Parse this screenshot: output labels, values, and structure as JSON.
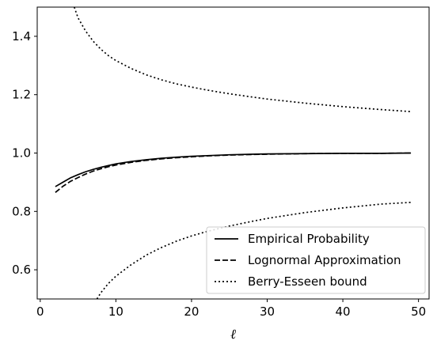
{
  "chart_data": {
    "type": "line",
    "title": "",
    "xlabel": "ℓ",
    "ylabel": "",
    "xlim": [
      -0.4,
      51.4
    ],
    "ylim": [
      0.5,
      1.5
    ],
    "xticks": [
      0,
      10,
      20,
      30,
      40,
      50
    ],
    "yticks": [
      0.6,
      0.8,
      1.0,
      1.2,
      1.4
    ],
    "xtick_labels": [
      "0",
      "10",
      "20",
      "30",
      "40",
      "50"
    ],
    "ytick_labels": [
      "0.6",
      "0.8",
      "1.0",
      "1.2",
      "1.4"
    ],
    "grid": false,
    "legend_position": "lower-right",
    "series": [
      {
        "name": "Empirical Probability",
        "style": "solid",
        "color": "#000000",
        "x": [
          2,
          3,
          4,
          5,
          6,
          7,
          8,
          9,
          10,
          12,
          14,
          16,
          18,
          20,
          22,
          25,
          28,
          30,
          35,
          40,
          45,
          49
        ],
        "y": [
          0.885,
          0.9,
          0.915,
          0.926,
          0.936,
          0.944,
          0.951,
          0.957,
          0.963,
          0.971,
          0.977,
          0.982,
          0.986,
          0.989,
          0.991,
          0.994,
          0.996,
          0.997,
          0.998,
          0.999,
          0.999,
          1.0
        ]
      },
      {
        "name": "Lognormal Approximation",
        "style": "dashed",
        "color": "#000000",
        "x": [
          2,
          3,
          4,
          5,
          6,
          7,
          8,
          9,
          10,
          12,
          14,
          16,
          18,
          20,
          22,
          25,
          28,
          30,
          35,
          40,
          45,
          49
        ],
        "y": [
          0.865,
          0.886,
          0.903,
          0.916,
          0.928,
          0.938,
          0.946,
          0.953,
          0.959,
          0.968,
          0.975,
          0.98,
          0.984,
          0.987,
          0.99,
          0.993,
          0.995,
          0.996,
          0.998,
          0.999,
          0.999,
          1.0
        ]
      },
      {
        "name": "Berry-Esseen bound",
        "style": "dotted",
        "color": "#000000",
        "x": [
          4.5,
          5,
          6,
          7,
          8,
          9,
          10,
          12,
          14,
          16,
          18,
          20,
          22,
          25,
          28,
          30,
          35,
          40,
          45,
          49
        ],
        "y": [
          1.5,
          1.463,
          1.418,
          1.383,
          1.356,
          1.334,
          1.317,
          1.29,
          1.268,
          1.251,
          1.237,
          1.226,
          1.216,
          1.203,
          1.192,
          1.185,
          1.171,
          1.159,
          1.149,
          1.142
        ],
        "x_lower": [
          7.5,
          8,
          9,
          10,
          12,
          14,
          16,
          18,
          20,
          22,
          25,
          28,
          30,
          35,
          40,
          45,
          49
        ],
        "y_lower": [
          0.5,
          0.521,
          0.553,
          0.578,
          0.617,
          0.65,
          0.676,
          0.698,
          0.716,
          0.731,
          0.75,
          0.766,
          0.776,
          0.796,
          0.812,
          0.825,
          0.831
        ]
      }
    ]
  }
}
